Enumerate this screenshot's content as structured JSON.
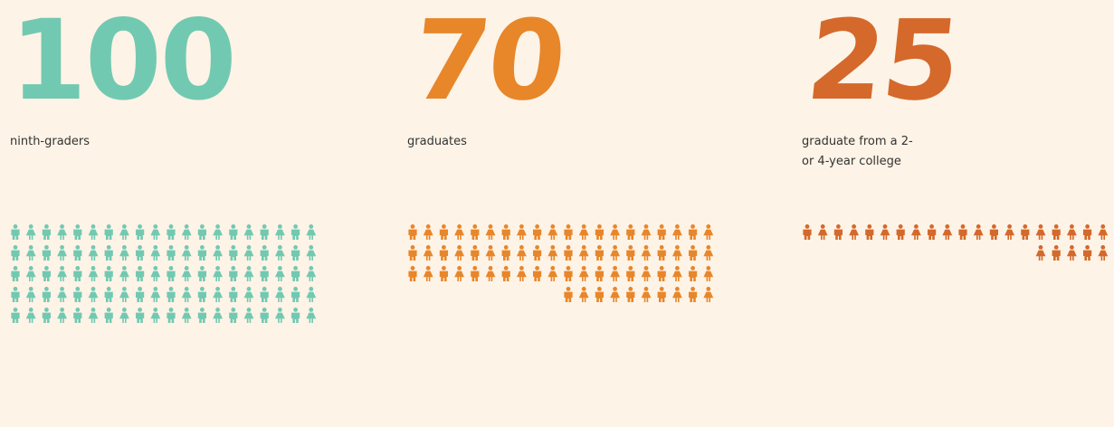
{
  "chart_data": {
    "type": "pictograph",
    "groups": [
      {
        "value": 100,
        "number_text": "100",
        "label": "ninth-graders",
        "color": "#72c9b1",
        "icons": 100
      },
      {
        "value": 70,
        "number_text": "70",
        "label": "graduates",
        "color": "#e8862a",
        "icons": 70
      },
      {
        "value": 25,
        "number_text": "25",
        "label": "graduate from a 2-or 4-year college",
        "color": "#d4692b",
        "icons": 25
      }
    ]
  }
}
